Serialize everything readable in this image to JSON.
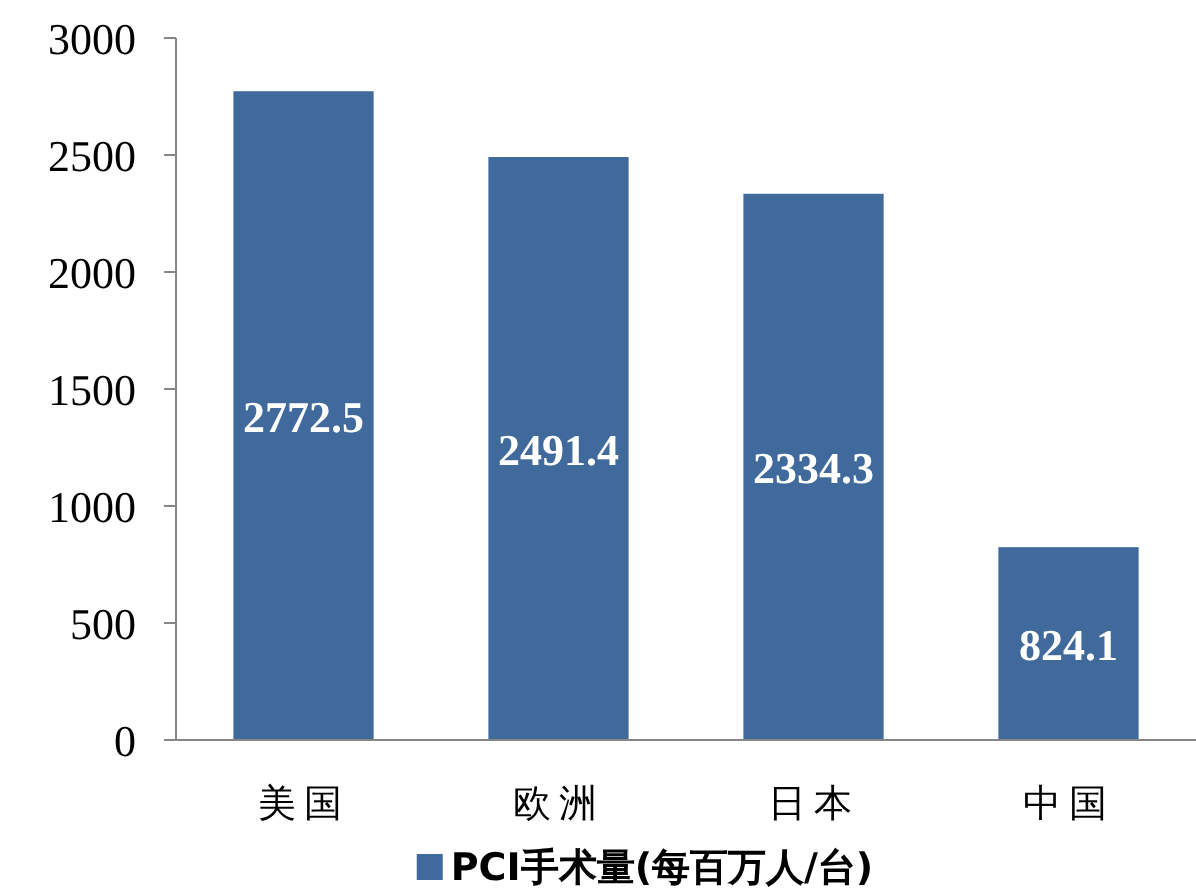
{
  "chart_data": {
    "type": "bar",
    "categories": [
      "美国",
      "欧洲",
      "日本",
      "中国"
    ],
    "series": [
      {
        "name": "PCI手术量(每百万人/台)",
        "color": "#416a9c",
        "values": [
          2772.5,
          2491.4,
          2334.3,
          824.1
        ]
      }
    ],
    "ylim": [
      0,
      3000
    ],
    "yticks": [
      0,
      500,
      1000,
      1500,
      2000,
      2500,
      3000
    ],
    "data_labels": true,
    "legend": "bottom"
  }
}
